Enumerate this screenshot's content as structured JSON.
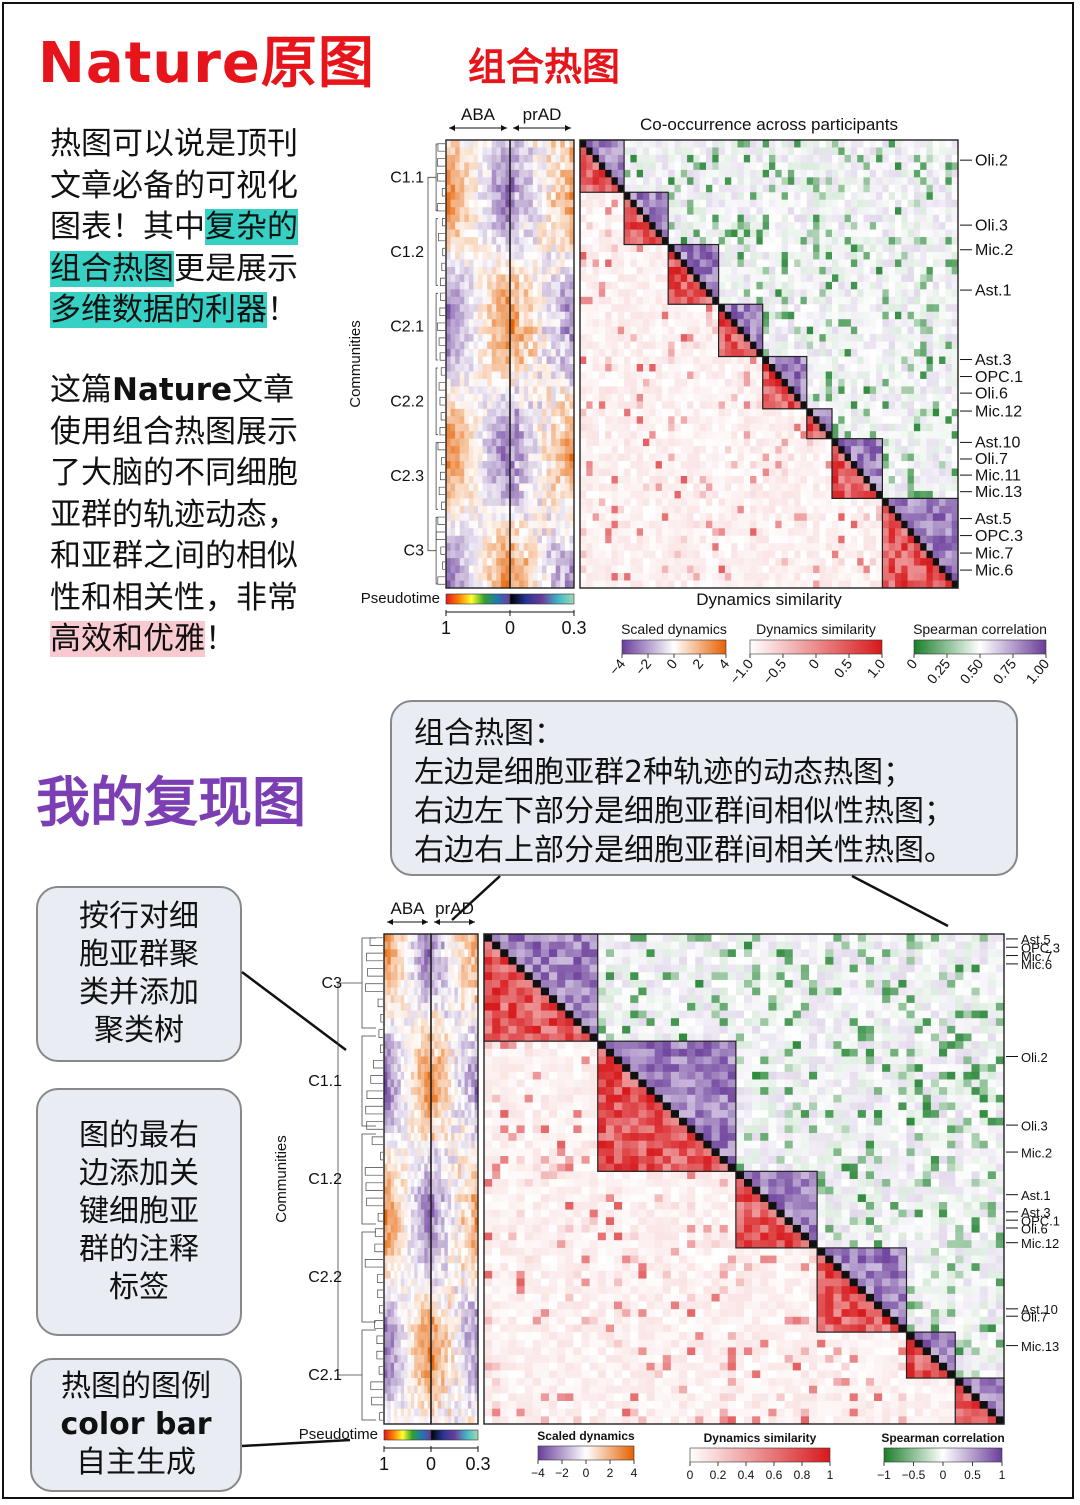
{
  "header": {
    "nature_title": "Nature原图",
    "combo_title": "组合热图",
    "my_title": "我的复现图"
  },
  "intro": {
    "p1_a": "热图可以说是顶刊文章必备的可视化图表！其中",
    "p1_hl1": "复杂的组合热图",
    "p1_b": "更是展示",
    "p1_hl2": "多维数据的利器",
    "p1_c": "！",
    "p2_a": "这篇",
    "p2_bold": "Nature",
    "p2_b": "文章使用组合热图展示了大脑的不同细胞亚群的轨迹动态，和亚群之间的相似性和相关性，非常",
    "p2_hl": "高效和优雅",
    "p2_c": "！"
  },
  "callouts": {
    "main_title": "组合热图：",
    "main_lines": [
      "左边是细胞亚群2种轨迹的动态热图；",
      "右边左下部分是细胞亚群间相似性热图；",
      "右边右上部分是细胞亚群间相关性热图。"
    ],
    "c1": "按行对细胞亚群聚类并添加聚类树",
    "c2": "图的最右边添加关键细胞亚群的注释标签",
    "c3_a": "热图的图例",
    "c3_bold": "color bar",
    "c3_b": "自主生成"
  },
  "colors": {
    "red": "#d7191c",
    "orange": "#e66101",
    "purple": "#6a3d9a",
    "green": "#1a7f2a"
  },
  "chart_data": [
    {
      "type": "heatmap",
      "panel": "original",
      "top_labels": [
        "ABA",
        "prAD"
      ],
      "main_title": "Co-occurrence across participants",
      "bottom_title": "Dynamics similarity",
      "ylabel": "Communities",
      "communities": [
        "C1.1",
        "C1.2",
        "C2.1",
        "C2.2",
        "C2.3",
        "C3"
      ],
      "right_labels": [
        "Oli.2",
        "Oli.3",
        "Mic.2",
        "Ast.1",
        "Ast.3",
        "OPC.1",
        "Oli.6",
        "Mic.12",
        "Ast.10",
        "Oli.7",
        "Mic.11",
        "Mic.13",
        "Ast.5",
        "OPC.3",
        "Mic.7",
        "Mic.6"
      ],
      "pseudotime": {
        "label": "Pseudotime",
        "ticks": [
          "1",
          "0",
          "0.3"
        ]
      },
      "legends": [
        {
          "title": "Scaled dynamics",
          "ticks": [
            "−4",
            "−2",
            "0",
            "2",
            "4"
          ],
          "colors": [
            "#6a3d9a",
            "#ffffff",
            "#e66101"
          ]
        },
        {
          "title": "Dynamics similarity",
          "ticks": [
            "−1.0",
            "−0.5",
            "0",
            "0.5",
            "1.0"
          ],
          "colors": [
            "#ffffff",
            "#d7191c"
          ]
        },
        {
          "title": "Spearman correlation",
          "ticks": [
            "0",
            "0.25",
            "0.50",
            "0.75",
            "1.00"
          ],
          "colors": [
            "#1a7f2a",
            "#ffffff",
            "#6a3d9a"
          ]
        }
      ]
    },
    {
      "type": "heatmap",
      "panel": "reproduction",
      "top_labels": [
        "ABA",
        "prAD"
      ],
      "ylabel": "Communities",
      "communities": [
        "C3",
        "C1.1",
        "C1.2",
        "C2.2",
        "C2.1"
      ],
      "right_labels": [
        "Ast.5",
        "OPC.3",
        "Mic.7",
        "Mic.6",
        "Oli.2",
        "Oli.3",
        "Mic.2",
        "Ast.1",
        "Ast.3",
        "OPC.1",
        "Oli.6",
        "Mic.12",
        "Ast.10",
        "Oli.7",
        "Mic.13"
      ],
      "pseudotime": {
        "label": "Pseudotime",
        "ticks": [
          "1",
          "0",
          "0.3"
        ]
      },
      "legends": [
        {
          "title": "Scaled dynamics",
          "ticks": [
            "−4",
            "−2",
            "0",
            "2",
            "4"
          ],
          "colors": [
            "#6a3d9a",
            "#ffffff",
            "#e66101"
          ]
        },
        {
          "title": "Dynamics similarity",
          "ticks": [
            "0",
            "0.2",
            "0.4",
            "0.6",
            "0.8",
            "1"
          ],
          "colors": [
            "#ffffff",
            "#d7191c"
          ]
        },
        {
          "title": "Spearman correlation",
          "ticks": [
            "−1",
            "−0.5",
            "0",
            "0.5",
            "1"
          ],
          "colors": [
            "#1a7f2a",
            "#ffffff",
            "#6a3d9a"
          ]
        }
      ]
    }
  ]
}
